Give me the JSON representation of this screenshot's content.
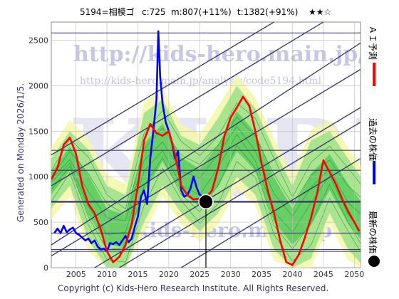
{
  "header": {
    "code": "5194=相模ゴ",
    "current": "c:725",
    "middle": "m:807(+11%)",
    "target": "t:1382(+91%)",
    "stars": "★★☆"
  },
  "generated": "Generated on Monday 2026/1/5.",
  "footer": "Copyright (c) Kids-Hero Research Institute. All Rights Reserved.",
  "watermark": {
    "url": "http://kids-hero.main.jp/",
    "analysis_url": "http://kids-hero.main.jp/analysis/code5194.html",
    "site": "kids-hero.main.jp",
    "big": "KHRI"
  },
  "legend": [
    {
      "label": "ＡＩ予測",
      "color": "#ff0000"
    },
    {
      "label": "過去の株価",
      "color": "#0000ff"
    },
    {
      "label": "最新の株価",
      "color": "#000000"
    }
  ],
  "chart_data": {
    "type": "line",
    "title": "5194=相模ゴ c:725 m:807(+11%) t:1382(+91%) ★★☆",
    "xlabel": "",
    "ylabel": "",
    "xlim": [
      2001,
      2051
    ],
    "ylim": [
      0,
      2700
    ],
    "x_ticks": [
      2005,
      2010,
      2015,
      2020,
      2025,
      2030,
      2035,
      2040,
      2045,
      2050
    ],
    "y_ticks": [
      0,
      500,
      1000,
      1500,
      2000,
      2500
    ],
    "horizontal_levels": [
      180,
      200,
      380,
      725,
      1070,
      1290,
      2580
    ],
    "latest_point": {
      "x": 2026.0,
      "y": 725
    },
    "series": [
      {
        "name": "過去の株価",
        "color": "#0000ff",
        "points": [
          [
            2001.5,
            380
          ],
          [
            2002,
            430
          ],
          [
            2002.5,
            380
          ],
          [
            2003,
            460
          ],
          [
            2003.5,
            390
          ],
          [
            2004,
            420
          ],
          [
            2004.5,
            440
          ],
          [
            2005,
            380
          ],
          [
            2005.5,
            360
          ],
          [
            2006,
            330
          ],
          [
            2006.5,
            300
          ],
          [
            2007,
            320
          ],
          [
            2007.5,
            270
          ],
          [
            2008,
            300
          ],
          [
            2008.5,
            230
          ],
          [
            2009,
            200
          ],
          [
            2009.5,
            210
          ],
          [
            2010,
            180
          ],
          [
            2010.5,
            270
          ],
          [
            2011,
            260
          ],
          [
            2011.5,
            280
          ],
          [
            2012,
            250
          ],
          [
            2012.5,
            300
          ],
          [
            2013,
            350
          ],
          [
            2013.5,
            280
          ],
          [
            2014,
            320
          ],
          [
            2014.5,
            450
          ],
          [
            2015,
            560
          ],
          [
            2015.5,
            780
          ],
          [
            2016,
            850
          ],
          [
            2016.5,
            700
          ],
          [
            2017,
            1200
          ],
          [
            2017.5,
            1500
          ],
          [
            2018,
            1850
          ],
          [
            2018.3,
            2600
          ],
          [
            2018.6,
            2100
          ],
          [
            2019,
            1800
          ],
          [
            2019.5,
            1600
          ],
          [
            2020,
            1500
          ],
          [
            2020.5,
            1380
          ],
          [
            2021,
            1200
          ],
          [
            2021.5,
            1280
          ],
          [
            2022,
            850
          ],
          [
            2022.5,
            780
          ],
          [
            2023,
            800
          ],
          [
            2023.5,
            870
          ],
          [
            2024,
            1000
          ],
          [
            2024.5,
            880
          ],
          [
            2025,
            800
          ],
          [
            2025.5,
            780
          ],
          [
            2026,
            725
          ]
        ]
      },
      {
        "name": "ＡＩ予測",
        "color": "#ff0000",
        "points": [
          [
            2001,
            970
          ],
          [
            2002,
            1100
          ],
          [
            2003,
            1350
          ],
          [
            2004,
            1430
          ],
          [
            2005,
            1250
          ],
          [
            2006,
            900
          ],
          [
            2007,
            700
          ],
          [
            2008,
            600
          ],
          [
            2009,
            420
          ],
          [
            2010,
            180
          ],
          [
            2011,
            60
          ],
          [
            2012,
            120
          ],
          [
            2013,
            250
          ],
          [
            2014,
            480
          ],
          [
            2015,
            900
          ],
          [
            2016,
            1400
          ],
          [
            2017,
            1580
          ],
          [
            2018,
            1480
          ],
          [
            2019,
            1450
          ],
          [
            2020,
            1500
          ],
          [
            2021,
            1250
          ],
          [
            2022,
            900
          ],
          [
            2023,
            800
          ],
          [
            2024,
            750
          ],
          [
            2025,
            760
          ],
          [
            2026,
            770
          ],
          [
            2027,
            850
          ],
          [
            2028,
            1100
          ],
          [
            2029,
            1450
          ],
          [
            2030,
            1650
          ],
          [
            2031,
            1760
          ],
          [
            2032,
            1880
          ],
          [
            2033,
            1780
          ],
          [
            2034,
            1500
          ],
          [
            2035,
            1150
          ],
          [
            2036,
            850
          ],
          [
            2037,
            600
          ],
          [
            2038,
            300
          ],
          [
            2039,
            60
          ],
          [
            2040,
            30
          ],
          [
            2041,
            140
          ],
          [
            2042,
            330
          ],
          [
            2043,
            550
          ],
          [
            2044,
            820
          ],
          [
            2045,
            1180
          ],
          [
            2046,
            1050
          ],
          [
            2047,
            920
          ],
          [
            2048,
            760
          ],
          [
            2049,
            620
          ],
          [
            2050,
            500
          ],
          [
            2050.8,
            400
          ]
        ]
      }
    ],
    "channel_lines": [
      [
        [
          2001,
          1240
        ],
        [
          2037,
          2700
        ]
      ],
      [
        [
          2001,
          900
        ],
        [
          2045,
          2700
        ]
      ],
      [
        [
          2001,
          250
        ],
        [
          2051,
          2470
        ]
      ],
      [
        [
          2001,
          130
        ],
        [
          2051,
          2180
        ]
      ],
      [
        [
          2008,
          0
        ],
        [
          2051,
          1760
        ]
      ],
      [
        [
          2012,
          0
        ],
        [
          2051,
          1600
        ]
      ],
      [
        [
          2022,
          0
        ],
        [
          2051,
          1200
        ]
      ]
    ],
    "forecast_band": {
      "x": [
        2001,
        2004,
        2007,
        2010,
        2013,
        2016,
        2019,
        2022,
        2025,
        2028,
        2031,
        2034,
        2037,
        2040,
        2043,
        2046,
        2049,
        2051
      ],
      "upper": [
        1200,
        1500,
        1300,
        900,
        800,
        1700,
        1850,
        1450,
        1350,
        1650,
        2000,
        1750,
        1300,
        900,
        1400,
        1500,
        1200,
        1000
      ],
      "lower": [
        650,
        900,
        300,
        0,
        0,
        500,
        900,
        600,
        400,
        600,
        1000,
        800,
        200,
        0,
        100,
        600,
        200,
        50
      ]
    }
  }
}
